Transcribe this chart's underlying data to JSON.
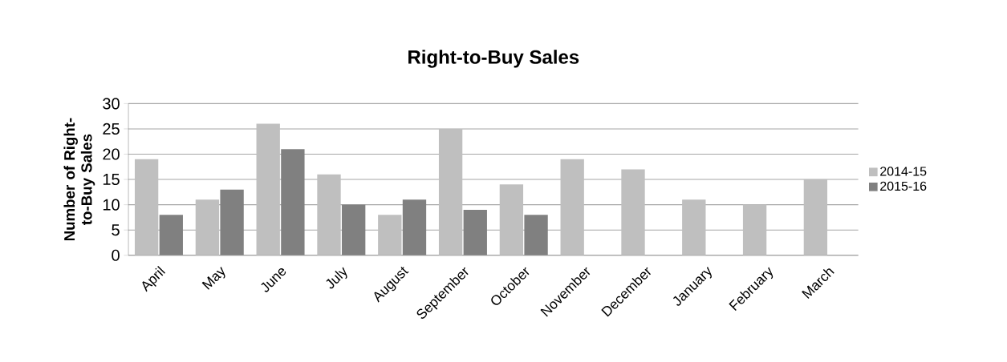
{
  "chart_data": {
    "type": "bar",
    "title": "Right-to-Buy Sales",
    "ylabel": "Number of Right-to-Buy Sales",
    "categories": [
      "April",
      "May",
      "June",
      "July",
      "August",
      "September",
      "October",
      "November",
      "December",
      "January",
      "February",
      "March"
    ],
    "series": [
      {
        "name": "2014-15",
        "color": "#bfbfbf",
        "values": [
          19,
          11,
          26,
          16,
          8,
          25,
          14,
          19,
          17,
          11,
          10,
          15
        ]
      },
      {
        "name": "2015-16",
        "color": "#808080",
        "values": [
          8,
          13,
          21,
          10,
          11,
          9,
          8,
          null,
          null,
          null,
          null,
          null
        ]
      }
    ],
    "ylim": [
      0,
      30
    ],
    "yticks": [
      0,
      5,
      10,
      15,
      20,
      25,
      30
    ],
    "grid": "y",
    "legend": "right"
  }
}
